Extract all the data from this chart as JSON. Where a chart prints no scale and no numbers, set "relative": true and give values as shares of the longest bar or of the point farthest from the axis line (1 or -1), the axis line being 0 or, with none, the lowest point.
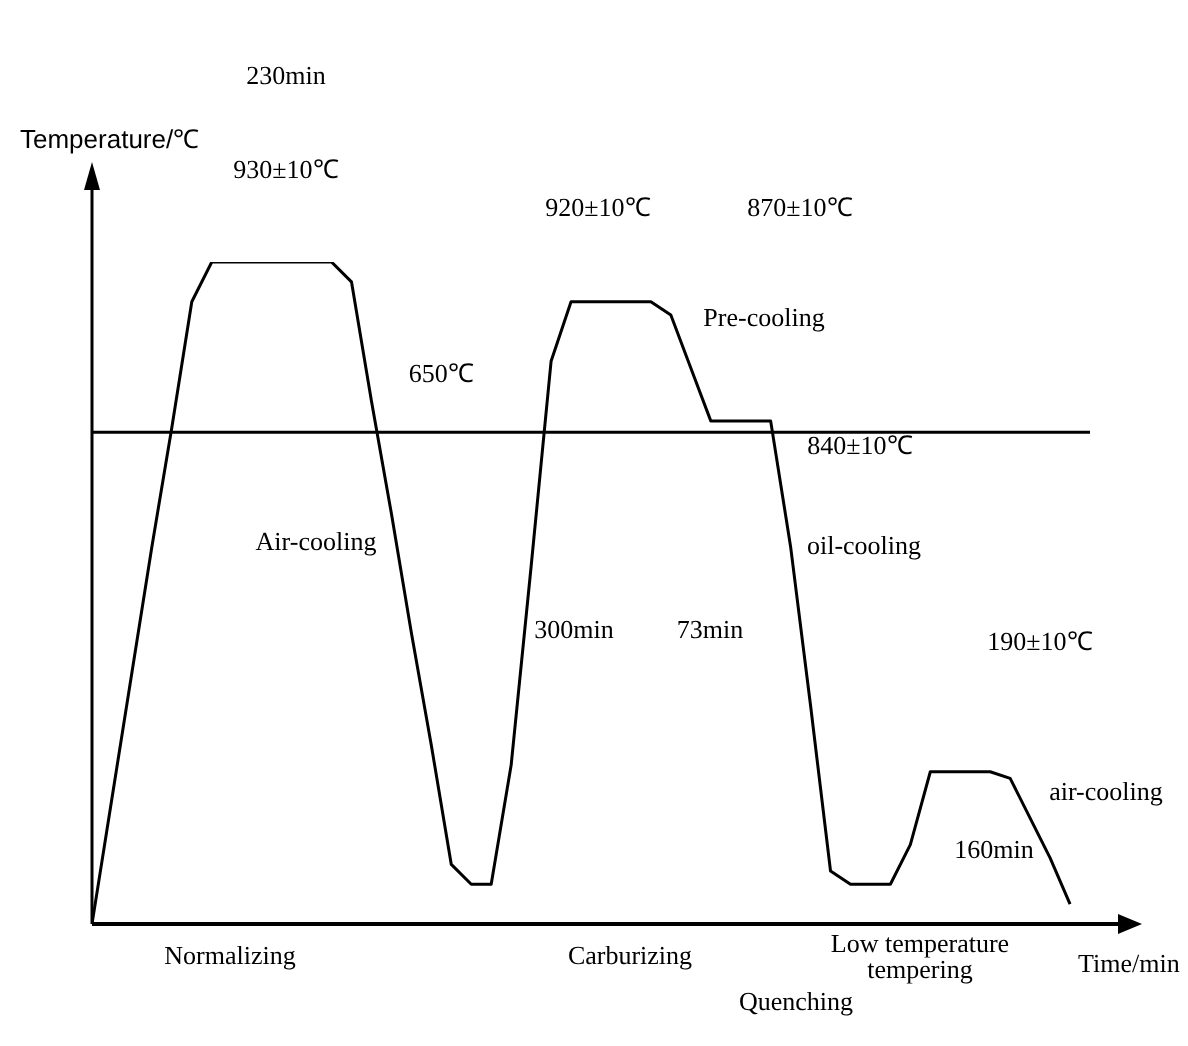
{
  "chart_data": {
    "type": "line",
    "relative": true,
    "xlabel": "Time/min",
    "ylabel": "Temperature/℃",
    "categories": [
      null,
      null,
      null,
      null,
      null,
      null,
      null,
      null,
      null,
      null,
      null,
      null,
      null,
      null,
      null,
      null,
      null,
      null,
      null,
      null,
      null,
      null,
      null,
      null,
      null,
      null,
      null,
      null,
      null,
      null,
      null,
      null,
      null,
      null,
      null,
      null,
      null,
      null,
      null,
      null,
      null,
      null,
      null,
      null,
      null,
      null,
      null,
      null,
      null,
      null
    ],
    "series": [
      {
        "color": "#000000",
        "values": [
          0,
          0.19,
          0.38,
          0.57,
          0.75,
          0.94,
          1,
          1,
          1,
          1,
          1,
          1,
          1,
          0.97,
          0.79,
          0.62,
          0.44,
          0.27,
          0.09,
          0.06,
          0.06,
          0.24,
          0.54,
          0.85,
          0.94,
          0.94,
          0.94,
          0.94,
          0.94,
          0.92,
          0.84,
          0.76,
          0.76,
          0.76,
          0.76,
          0.57,
          0.33,
          0.08,
          0.06,
          0.06,
          0.06,
          0.12,
          0.23,
          0.23,
          0.23,
          0.23,
          0.22,
          0.16,
          0.1,
          0.03
        ]
      }
    ],
    "ref_lines": [
      {
        "axis": "y",
        "value": 0.743,
        "label": "650℃",
        "color": "#000000"
      }
    ],
    "annotations": [
      "230min",
      "930±10℃",
      "920±10℃",
      "870±10℃",
      "Pre-cooling",
      "840±10℃",
      "Air-cooling",
      "oil-cooling",
      "300min",
      "73min",
      "190±10℃",
      "air-cooling",
      "160min",
      "Normalizing",
      "Carburizing",
      "Low temperature tempering",
      "Quenching"
    ],
    "grid": false,
    "legend": false,
    "marker": "none",
    "line_style": "solid"
  }
}
